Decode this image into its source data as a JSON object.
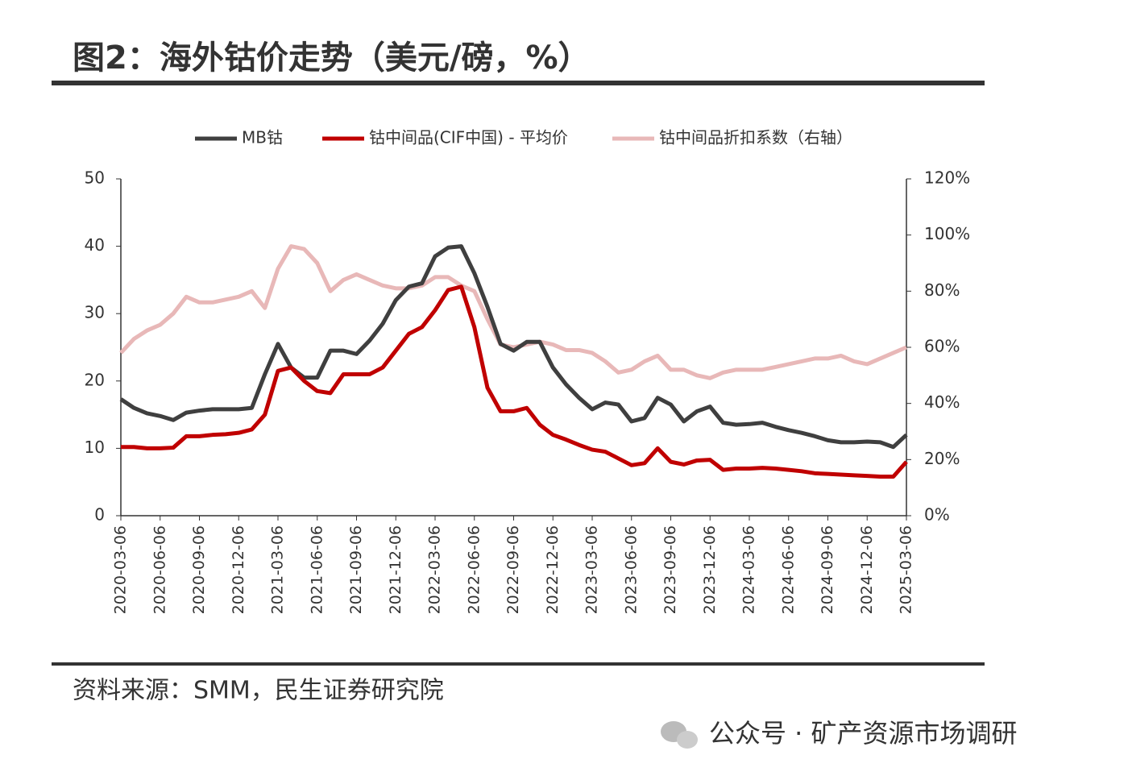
{
  "chart_data": {
    "type": "line",
    "title": "图2：海外钴价走势（美元/磅，%）",
    "source": "资料来源：SMM，民生证券研究院",
    "watermark": "公众号 · 矿产资源市场调研",
    "categories": [
      "2020-03-06",
      null,
      null,
      "2020-06-06",
      null,
      null,
      "2020-09-06",
      null,
      null,
      "2020-12-06",
      null,
      null,
      "2021-03-06",
      null,
      null,
      "2021-06-06",
      null,
      null,
      "2021-09-06",
      null,
      null,
      "2021-12-06",
      null,
      null,
      "2022-03-06",
      null,
      null,
      "2022-06-06",
      null,
      null,
      "2022-09-06",
      null,
      null,
      "2022-12-06",
      null,
      null,
      "2023-03-06",
      null,
      null,
      "2023-06-06",
      null,
      null,
      "2023-09-06",
      null,
      null,
      "2023-12-06",
      null,
      null,
      "2024-03-06",
      null,
      null,
      "2024-06-06",
      null,
      null,
      "2024-09-06",
      null,
      null,
      "2024-12-06",
      null,
      null,
      "2025-03-06"
    ],
    "series": [
      {
        "name": "MB钴",
        "color": "#3f3f3f",
        "values": [
          17.3,
          16,
          15.2,
          14.8,
          14.2,
          15.3,
          15.6,
          15.8,
          15.8,
          15.8,
          16,
          21,
          25.5,
          22,
          20.5,
          20.5,
          24.5,
          24.5,
          24,
          26,
          28.5,
          32,
          34,
          34.5,
          38.5,
          39.8,
          40,
          36,
          31,
          25.5,
          24.5,
          25.8,
          25.8,
          22,
          19.5,
          17.5,
          15.8,
          16.8,
          16.5,
          14,
          14.5,
          17.5,
          16.5,
          14,
          15.5,
          16.2,
          13.8,
          13.5,
          13.6,
          13.8,
          13.2,
          12.7,
          12.3,
          11.8,
          11.2,
          10.9,
          10.9,
          11,
          10.9,
          10.2,
          12
        ]
      },
      {
        "name": "钴中间品(CIF中国) - 平均价",
        "color": "#c00000",
        "values": [
          10.2,
          10.2,
          10,
          10,
          10.1,
          11.8,
          11.8,
          12,
          12.1,
          12.3,
          12.8,
          15,
          21.5,
          22,
          20,
          18.5,
          18.2,
          21,
          21,
          21,
          22,
          24.5,
          27,
          28,
          30.5,
          33.5,
          34,
          28,
          19,
          15.5,
          15.5,
          16,
          13.5,
          12,
          11.3,
          10.5,
          9.8,
          9.5,
          8.5,
          7.5,
          7.8,
          10,
          8,
          7.6,
          8.2,
          8.3,
          6.8,
          7,
          7,
          7.1,
          7,
          6.8,
          6.6,
          6.3,
          6.2,
          6.1,
          6,
          5.9,
          5.8,
          5.8,
          8
        ]
      },
      {
        "name": "钴中间品折扣系数（右轴）",
        "color": "#e8b8b8",
        "axis": "y2",
        "values": [
          58,
          63,
          66,
          68,
          72,
          78,
          76,
          76,
          77,
          78,
          80,
          74,
          88,
          96,
          95,
          90,
          80,
          84,
          86,
          84,
          82,
          81,
          81,
          82,
          85,
          85,
          82,
          80,
          70,
          61,
          60,
          61,
          62,
          61,
          59,
          59,
          58,
          55,
          51,
          52,
          55,
          57,
          52,
          52,
          50,
          49,
          51,
          52,
          52,
          52,
          53,
          54,
          55,
          56,
          56,
          57,
          55,
          54,
          56,
          58,
          60
        ]
      }
    ],
    "ylim": [
      0,
      50
    ],
    "yticks": [
      0,
      10,
      20,
      30,
      40,
      50
    ],
    "y2lim": [
      0,
      120
    ],
    "y2ticks": [
      {
        "value": 0,
        "label": "0%"
      },
      {
        "value": 20,
        "label": "20%"
      },
      {
        "value": 40,
        "label": "40%"
      },
      {
        "value": 60,
        "label": "60%"
      },
      {
        "value": 80,
        "label": "80%"
      },
      {
        "value": 100,
        "label": "100%"
      },
      {
        "value": 120,
        "label": "120%"
      }
    ],
    "legend": "top"
  }
}
